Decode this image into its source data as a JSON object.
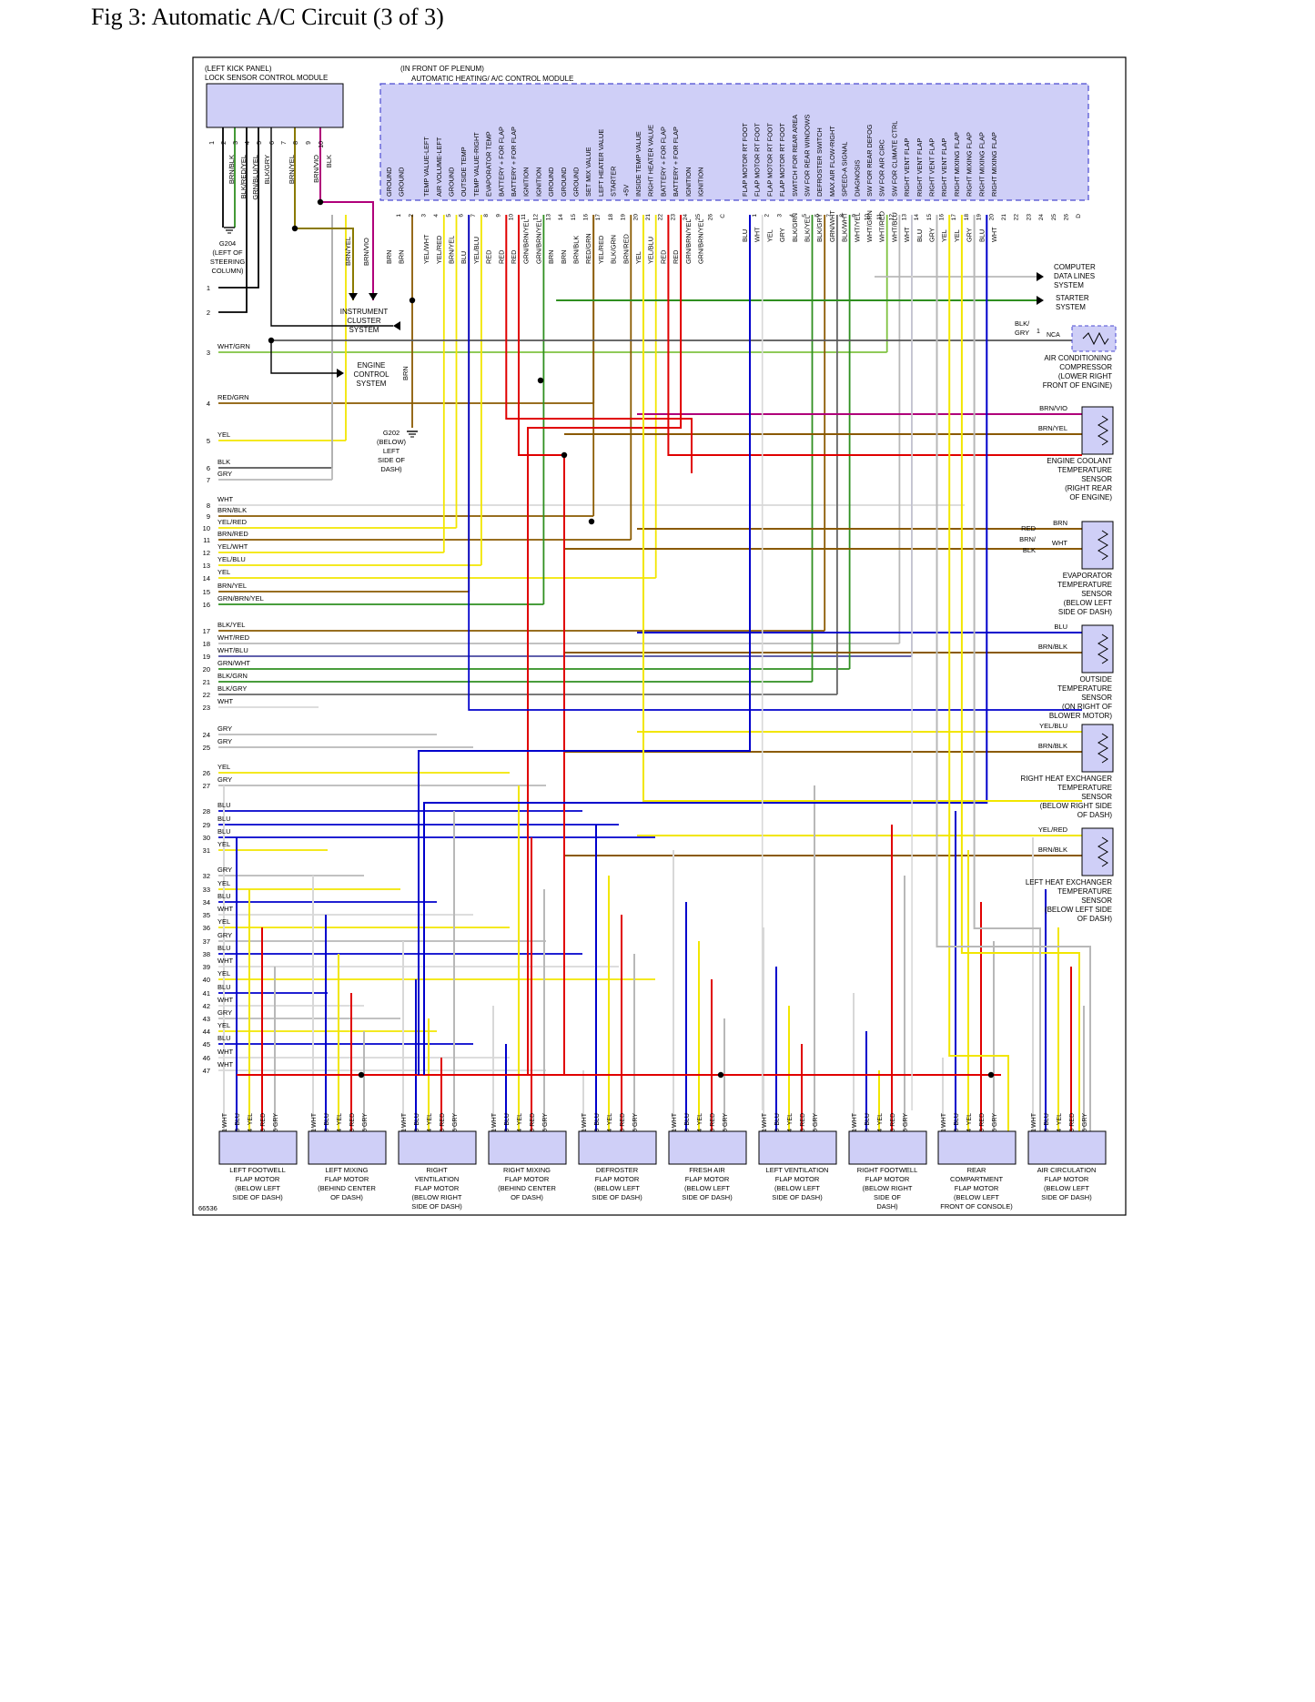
{
  "page": {
    "title": "Fig 3: Automatic A/C Circuit (3 of 3)"
  },
  "figure_id": "66536",
  "modules": {
    "lock_sensor": {
      "lines": [
        "(LEFT KICK PANEL)",
        "LOCK SENSOR CONTROL MODULE"
      ]
    },
    "ac_module": {
      "lines": [
        "(IN FRONT OF PLENUM)",
        "AUTOMATIC HEATING/ A/C CONTROL MODULE"
      ]
    }
  },
  "lock_pins": [
    {
      "pin": "1",
      "wire": ""
    },
    {
      "pin": "2",
      "wire": "BRN/BLK"
    },
    {
      "pin": "3",
      "wire": "BLK/RED/YEL"
    },
    {
      "pin": "4",
      "wire": "GRN/BLU/YEL"
    },
    {
      "pin": "5",
      "wire": "BLK/GRY"
    },
    {
      "pin": "6",
      "wire": ""
    },
    {
      "pin": "7",
      "wire": "BRN/YEL"
    },
    {
      "pin": "8",
      "wire": ""
    },
    {
      "pin": "9",
      "wire": "BRN/VIO"
    },
    {
      "pin": "10",
      "wire": "BLK"
    }
  ],
  "connector_left": [
    {
      "pin": "1",
      "func": "GROUND",
      "wire": "BRN"
    },
    {
      "pin": "2",
      "func": "GROUND",
      "wire": "BRN"
    },
    {
      "pin": "3",
      "func": "",
      "wire": ""
    },
    {
      "pin": "4",
      "func": "TEMP VALUE-LEFT",
      "wire": "YEL/WHT"
    },
    {
      "pin": "5",
      "func": "AIR VOLUME-LEFT",
      "wire": "YEL/RED"
    },
    {
      "pin": "6",
      "func": "GROUND",
      "wire": "BRN/YEL"
    },
    {
      "pin": "7",
      "func": "OUTSIDE TEMP",
      "wire": "BLU"
    },
    {
      "pin": "8",
      "func": "TEMP VALUE-RIGHT",
      "wire": "YEL/BLU"
    },
    {
      "pin": "9",
      "func": "EVAPORATOR TEMP",
      "wire": "RED"
    },
    {
      "pin": "10",
      "func": "BATTERY + FOR FLAP",
      "wire": "RED"
    },
    {
      "pin": "11",
      "func": "BATTERY + FOR FLAP",
      "wire": "RED"
    },
    {
      "pin": "12",
      "func": "IGNITION",
      "wire": "GRN/BRN/YEL"
    },
    {
      "pin": "13",
      "func": "IGNITION",
      "wire": "GRN/BRN/YEL"
    },
    {
      "pin": "14",
      "func": "GROUND",
      "wire": "BRN"
    },
    {
      "pin": "15",
      "func": "GROUND",
      "wire": "BRN"
    },
    {
      "pin": "16",
      "func": "GROUND",
      "wire": "BRN/BLK"
    },
    {
      "pin": "17",
      "func": "SET MIX VALUE",
      "wire": "RED/GRN"
    },
    {
      "pin": "18",
      "func": "LEFT HEATER VALUE",
      "wire": "YEL/RED"
    },
    {
      "pin": "19",
      "func": "STARTER",
      "wire": "BLK/GRN"
    },
    {
      "pin": "20",
      "func": "+5V",
      "wire": "BRN/RED"
    },
    {
      "pin": "21",
      "func": "INSIDE TEMP VALUE",
      "wire": "YEL"
    },
    {
      "pin": "22",
      "func": "RIGHT HEATER VALUE",
      "wire": "YEL/BLU"
    },
    {
      "pin": "23",
      "func": "BATTERY + FOR FLAP",
      "wire": "RED"
    },
    {
      "pin": "24",
      "func": "BATTERY + FOR FLAP",
      "wire": "RED"
    },
    {
      "pin": "25",
      "func": "IGNITION",
      "wire": "GRN/BRN/YEL"
    },
    {
      "pin": "26",
      "func": "IGNITION",
      "wire": "GRN/BRN/YEL"
    },
    {
      "pin": "C",
      "func": "",
      "wire": ""
    }
  ],
  "connector_right": [
    {
      "pin": "1",
      "func": "FLAP MOTOR RT FOOT",
      "wire": "BLU"
    },
    {
      "pin": "2",
      "func": "FLAP MOTOR RT FOOT",
      "wire": "WHT"
    },
    {
      "pin": "3",
      "func": "FLAP MOTOR RT FOOT",
      "wire": "YEL"
    },
    {
      "pin": "4",
      "func": "FLAP MOTOR RT FOOT",
      "wire": "GRY"
    },
    {
      "pin": "5",
      "func": "SWITCH FOR REAR AREA",
      "wire": "BLK/GRN"
    },
    {
      "pin": "6",
      "func": "SW FOR REAR WINDOWS",
      "wire": "BLK/YEL"
    },
    {
      "pin": "7",
      "func": "DEFROSTER SWITCH",
      "wire": "BLK/GRY"
    },
    {
      "pin": "8",
      "func": "MAX AIR FLOW-RIGHT",
      "wire": "GRN/WHT"
    },
    {
      "pin": "9",
      "func": "SPEED-A SIGNAL",
      "wire": "BLK/WHT"
    },
    {
      "pin": "10",
      "func": "DIAGNOSIS",
      "wire": "WHT/YEL"
    },
    {
      "pin": "11",
      "func": "SW FOR REAR DEFOG",
      "wire": "WHT/GRN"
    },
    {
      "pin": "12",
      "func": "SW FOR AIR CIRC",
      "wire": "WHT/RED"
    },
    {
      "pin": "13",
      "func": "SW FOR CLIMATE CTRL",
      "wire": "WHT/BLU"
    },
    {
      "pin": "14",
      "func": "RIGHT VENT FLAP",
      "wire": "WHT"
    },
    {
      "pin": "15",
      "func": "RIGHT VENT FLAP",
      "wire": "BLU"
    },
    {
      "pin": "16",
      "func": "RIGHT VENT FLAP",
      "wire": "GRY"
    },
    {
      "pin": "17",
      "func": "RIGHT VENT FLAP",
      "wire": "YEL"
    },
    {
      "pin": "18",
      "func": "RIGHT MIXING FLAP",
      "wire": "YEL"
    },
    {
      "pin": "19",
      "func": "RIGHT MIXING FLAP",
      "wire": "GRY"
    },
    {
      "pin": "20",
      "func": "RIGHT MIXING FLAP",
      "wire": "BLU"
    },
    {
      "pin": "21",
      "func": "RIGHT MIXING FLAP",
      "wire": "WHT"
    },
    {
      "pin": "22",
      "func": "",
      "wire": ""
    },
    {
      "pin": "23",
      "func": "",
      "wire": ""
    },
    {
      "pin": "24",
      "func": "",
      "wire": ""
    },
    {
      "pin": "25",
      "func": "",
      "wire": ""
    },
    {
      "pin": "26",
      "func": "",
      "wire": ""
    },
    {
      "pin": "D",
      "func": "",
      "wire": ""
    }
  ],
  "left_rows": [
    {
      "n": "1",
      "w": ""
    },
    {
      "n": "2",
      "w": ""
    },
    {
      "n": "3",
      "w": "WHT/GRN"
    },
    {
      "n": "4",
      "w": "RED/GRN"
    },
    {
      "n": "5",
      "w": "YEL"
    },
    {
      "n": "6",
      "w": "BLK"
    },
    {
      "n": "7",
      "w": "GRY"
    },
    {
      "n": "8",
      "w": "WHT"
    },
    {
      "n": "9",
      "w": "BRN/BLK"
    },
    {
      "n": "10",
      "w": "YEL/RED"
    },
    {
      "n": "11",
      "w": "BRN/RED"
    },
    {
      "n": "12",
      "w": "YEL/WHT"
    },
    {
      "n": "13",
      "w": "YEL/BLU"
    },
    {
      "n": "14",
      "w": "YEL"
    },
    {
      "n": "15",
      "w": "BRN/YEL"
    },
    {
      "n": "16",
      "w": "GRN/BRN/YEL"
    },
    {
      "n": "17",
      "w": "BLK/YEL"
    },
    {
      "n": "18",
      "w": "WHT/RED"
    },
    {
      "n": "19",
      "w": "WHT/BLU"
    },
    {
      "n": "20",
      "w": "GRN/WHT"
    },
    {
      "n": "21",
      "w": "BLK/GRN"
    },
    {
      "n": "22",
      "w": "BLK/GRY"
    },
    {
      "n": "23",
      "w": "WHT"
    },
    {
      "n": "24",
      "w": "GRY"
    },
    {
      "n": "25",
      "w": "GRY"
    },
    {
      "n": "26",
      "w": "YEL"
    },
    {
      "n": "27",
      "w": "GRY"
    },
    {
      "n": "28",
      "w": "BLU"
    },
    {
      "n": "29",
      "w": "BLU"
    },
    {
      "n": "30",
      "w": "BLU"
    },
    {
      "n": "31",
      "w": "YEL"
    },
    {
      "n": "32",
      "w": "GRY"
    },
    {
      "n": "33",
      "w": "YEL"
    },
    {
      "n": "34",
      "w": "BLU"
    },
    {
      "n": "35",
      "w": "WHT"
    },
    {
      "n": "36",
      "w": "YEL"
    },
    {
      "n": "37",
      "w": "GRY"
    },
    {
      "n": "38",
      "w": "BLU"
    },
    {
      "n": "39",
      "w": "WHT"
    },
    {
      "n": "40",
      "w": "YEL"
    },
    {
      "n": "41",
      "w": "BLU"
    },
    {
      "n": "42",
      "w": "WHT"
    },
    {
      "n": "43",
      "w": "GRY"
    },
    {
      "n": "44",
      "w": "YEL"
    },
    {
      "n": "45",
      "w": "BLU"
    },
    {
      "n": "46",
      "w": "WHT"
    },
    {
      "n": "47",
      "w": "WHT"
    }
  ],
  "ground_g204": [
    "G204",
    "(LEFT OF",
    "STEERING",
    "COLUMN)"
  ],
  "ground_g202": [
    "G202",
    "(BELOW)",
    "LEFT",
    "SIDE OF",
    "DASH)"
  ],
  "systems": {
    "instrument": [
      "INSTRUMENT",
      "CLUSTER",
      "SYSTEM"
    ],
    "engine": [
      "ENGINE",
      "CONTROL",
      "SYSTEM"
    ],
    "computer": [
      "COMPUTER",
      "DATA LINES",
      "SYSTEM"
    ],
    "starter": [
      "STARTER",
      "SYSTEM"
    ]
  },
  "mid_wires": {
    "brn_yel": "BRN/YEL",
    "brn_vio": "BRN/VIO",
    "brn": "BRN"
  },
  "compressor": {
    "wire": [
      "BLK/",
      "GRY"
    ],
    "pin": "1",
    "nca": "NCA",
    "label": [
      "AIR CONDITIONING",
      "COMPRESSOR",
      "(LOWER RIGHT",
      "FRONT OF ENGINE)"
    ]
  },
  "sensors": [
    {
      "wires": [
        "BRN/VIO",
        "BRN/YEL"
      ],
      "label": [
        "ENGINE COOLANT",
        "TEMPERATURE",
        "SENSOR",
        "(RIGHT REAR",
        "OF ENGINE)"
      ]
    },
    {
      "wires": [
        "BRN",
        "WHT"
      ],
      "left": [
        "RED",
        "BRN/",
        "BLK"
      ],
      "label": [
        "EVAPORATOR",
        "TEMPERATURE",
        "SENSOR",
        "(BELOW LEFT",
        "SIDE OF DASH)"
      ]
    },
    {
      "wires": [
        "BLU",
        "BRN/BLK"
      ],
      "label": [
        "OUTSIDE",
        "TEMPERATURE",
        "SENSOR",
        "(ON RIGHT OF",
        "BLOWER MOTOR)"
      ]
    },
    {
      "wires": [
        "YEL/BLU",
        "BRN/BLK"
      ],
      "label": [
        "RIGHT HEAT EXCHANGER",
        "TEMPERATURE",
        "SENSOR",
        "(BELOW RIGHT SIDE",
        "OF DASH)"
      ]
    },
    {
      "wires": [
        "YEL/RED",
        "BRN/BLK"
      ],
      "label": [
        "LEFT HEAT EXCHANGER",
        "TEMPERATURE",
        "SENSOR",
        "(BELOW LEFT SIDE",
        "OF DASH)"
      ]
    }
  ],
  "motor_pins": [
    "1",
    "3",
    "4",
    "5",
    "6"
  ],
  "motor_wires": [
    "WHT",
    "BLU",
    "YEL",
    "RED",
    "GRY"
  ],
  "motors": [
    {
      "label": [
        "LEFT FOOTWELL",
        "FLAP MOTOR",
        "(BELOW LEFT",
        "SIDE OF DASH)"
      ]
    },
    {
      "label": [
        "LEFT MIXING",
        "FLAP MOTOR",
        "(BEHIND CENTER",
        "OF DASH)"
      ]
    },
    {
      "label": [
        "RIGHT",
        "VENTILATION",
        "FLAP MOTOR",
        "(BELOW RIGHT",
        "SIDE OF DASH)"
      ]
    },
    {
      "label": [
        "RIGHT MIXING",
        "FLAP MOTOR",
        "(BEHIND CENTER",
        "OF DASH)"
      ]
    },
    {
      "label": [
        "DEFROSTER",
        "FLAP MOTOR",
        "(BELOW LEFT",
        "SIDE OF DASH)"
      ]
    },
    {
      "label": [
        "FRESH AIR",
        "FLAP MOTOR",
        "(BELOW LEFT",
        "SIDE OF DASH)"
      ]
    },
    {
      "label": [
        "LEFT VENTILATION",
        "FLAP MOTOR",
        "(BELOW LEFT",
        "SIDE OF DASH)"
      ]
    },
    {
      "label": [
        "RIGHT FOOTWELL",
        "FLAP MOTOR",
        "(BELOW RIGHT",
        "SIDE OF",
        "DASH)"
      ]
    },
    {
      "label": [
        "REAR",
        "COMPARTMENT",
        "FLAP MOTOR",
        "(BELOW LEFT",
        "FRONT OF CONSOLE)"
      ]
    },
    {
      "label": [
        "AIR CIRCULATION",
        "FLAP MOTOR",
        "(BELOW LEFT",
        "SIDE OF DASH)"
      ]
    }
  ],
  "colors": {
    "module_fill": "#cfcff7",
    "module_border": "#4a4ad0",
    "BLU": "#0000cc",
    "YEL": "#f2e600",
    "RED": "#e00000",
    "GRY": "#b8b8b8",
    "WHT": "#d8d8d8",
    "BRN": "#8a5a00",
    "GRN": "#2f8f20",
    "BLK": "#000000",
    "VIO": "#b0007a",
    "LGRN": "#7fc241"
  }
}
